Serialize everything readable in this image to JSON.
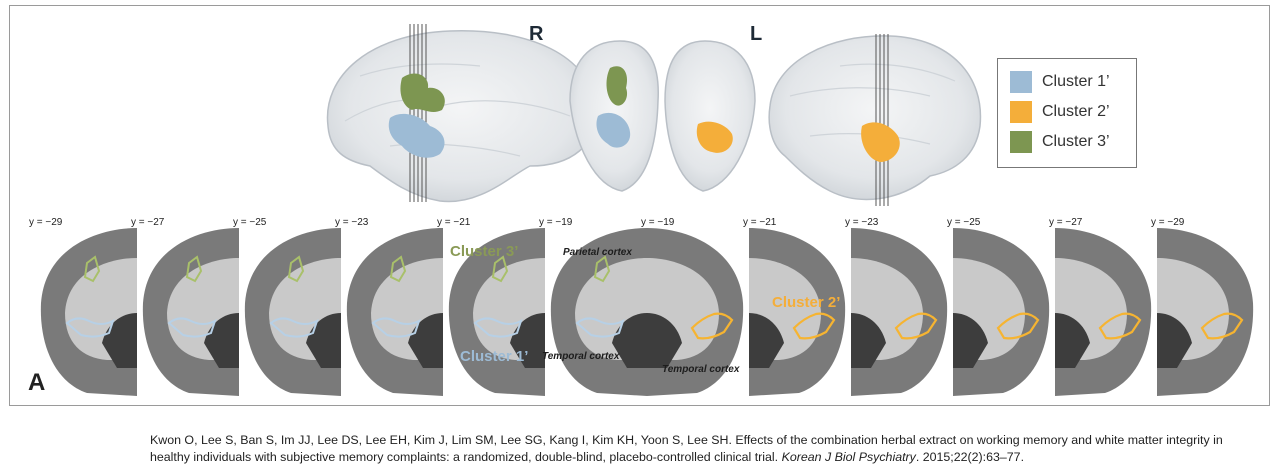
{
  "hemisphere_labels": {
    "right": "R",
    "left": "L"
  },
  "legend": [
    {
      "label": "Cluster 1’",
      "color": "#9dbbd5"
    },
    {
      "label": "Cluster 2’",
      "color": "#f4ae3a"
    },
    {
      "label": "Cluster 3’",
      "color": "#7d9651"
    }
  ],
  "slice_labels": [
    "y = −29",
    "y = −27",
    "y = −25",
    "y = −23",
    "y = −21",
    "y = −19",
    "y = −19",
    "y = −21",
    "y = −23",
    "y = −25",
    "y = −27",
    "y = −29"
  ],
  "annotations": {
    "parietal": "Parietal cortex",
    "temporal_right": "Temporal cortex",
    "temporal_left": "Temporal cortex",
    "cluster3": "Cluster 3’",
    "cluster1": "Cluster 1’",
    "cluster2": "Cluster 2’"
  },
  "panel_letter": "A",
  "citation": {
    "authors_title": "Kwon O, Lee S, Ban S, Im JJ, Lee DS, Lee EH, Kim J, Lim SM, Lee SG, Kang I, Kim KH, Yoon S, Lee SH. Effects of the combination herbal extract on working memory and white matter integrity in healthy individuals with subjective memory complaints: a randomized, double-blind, placebo-controlled clinical trial.",
    "journal": "Korean J Biol Psychiatry",
    "details": ". 2015;22(2):63–77."
  }
}
